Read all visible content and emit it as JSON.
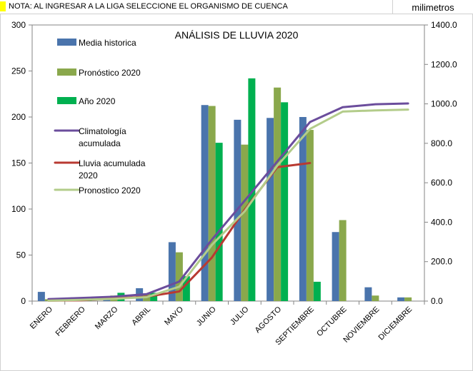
{
  "note": "NOTA: AL INGRESAR A LA LIGA SELECCIONE EL ORGANISMO DE CUENCA",
  "units_label": "milimetros",
  "colors": {
    "note_marker": "#ffff00",
    "media": "#4a74ac",
    "pronostico_bar": "#8aa84c",
    "anio": "#00b050",
    "climatologia": "#6b4d9c",
    "lluvia_acum": "#b83a32",
    "pronostico_line": "#b3cc8a"
  },
  "chart_data": {
    "type": "bar",
    "title": "ANÁLISIS DE LLUVIA 2020",
    "categories": [
      "ENERO",
      "FEBRERO",
      "MARZO",
      "ABRIL",
      "MAYO",
      "JUNIO",
      "JULIO",
      "AGOSTO",
      "SEPTIEMBRE",
      "OCTUBRE",
      "NOVIEMBRE",
      "DICIEMBRE"
    ],
    "left_axis": {
      "min": 0,
      "max": 300,
      "ticks": [
        "0",
        "50",
        "100",
        "150",
        "200",
        "250",
        "300"
      ]
    },
    "right_axis": {
      "min": 0,
      "max": 1400,
      "ticks": [
        "0.0",
        "200.0",
        "400.0",
        "600.0",
        "800.0",
        "1000.0",
        "1200.0",
        "1400.0"
      ]
    },
    "grid": false,
    "legend_position": "top-left",
    "bar_series": [
      {
        "name": "Media historica",
        "color_key": "media",
        "values": [
          10,
          4,
          4,
          14,
          64,
          213,
          197,
          199,
          200,
          75,
          15,
          4
        ]
      },
      {
        "name": "Pronóstico 2020",
        "color_key": "pronostico_bar",
        "values": [
          2,
          4,
          6,
          8,
          53,
          212,
          170,
          232,
          186,
          88,
          6,
          4
        ]
      },
      {
        "name": "Año 2020",
        "color_key": "anio",
        "values": [
          2,
          2,
          9,
          9,
          27,
          172,
          242,
          216,
          21,
          null,
          null,
          null
        ]
      }
    ],
    "line_series": [
      {
        "name": "Climatología acumulada",
        "color_key": "climatologia",
        "axis": "right",
        "values": [
          10,
          16,
          22,
          35,
          99,
          312,
          509,
          708,
          908,
          983,
          998,
          1002
        ]
      },
      {
        "name": "Lluvia acumulada 2020",
        "color_key": "lluvia_acum",
        "axis": "right",
        "values": [
          2,
          4,
          13,
          22,
          49,
          221,
          463,
          679,
          700,
          null,
          null,
          null
        ]
      },
      {
        "name": "Pronostico 2020",
        "color_key": "pronostico_line",
        "axis": "right",
        "values": [
          2,
          6,
          12,
          20,
          73,
          285,
          455,
          687,
          873,
          961,
          967,
          971
        ]
      }
    ],
    "legend": [
      {
        "label": "Media historica",
        "kind": "bar",
        "color_key": "media"
      },
      {
        "label": "Pronóstico 2020",
        "kind": "bar",
        "color_key": "pronostico_bar"
      },
      {
        "label": "Año 2020",
        "kind": "bar",
        "color_key": "anio"
      },
      {
        "label": "Climatología acumulada",
        "kind": "line",
        "color_key": "climatologia"
      },
      {
        "label": "Lluvia acumulada 2020",
        "kind": "line",
        "color_key": "lluvia_acum"
      },
      {
        "label": "Pronostico 2020",
        "kind": "line",
        "color_key": "pronostico_line"
      }
    ]
  }
}
